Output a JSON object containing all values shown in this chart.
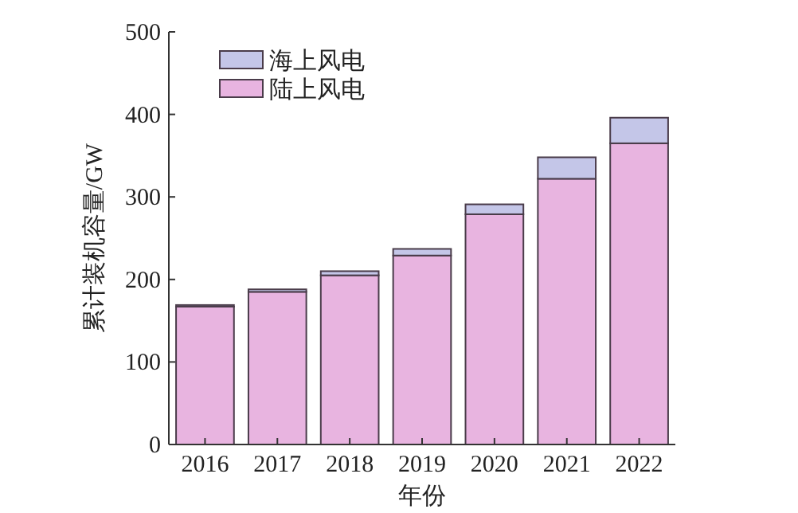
{
  "chart_data": {
    "type": "bar",
    "stacked": true,
    "xlabel": "年份",
    "ylabel": "累计装机容量/GW",
    "categories": [
      "2016",
      "2017",
      "2018",
      "2019",
      "2020",
      "2021",
      "2022"
    ],
    "series": [
      {
        "name": "陆上风电",
        "color": "#e8b4e0",
        "values": [
          167,
          185,
          205,
          229,
          279,
          322,
          365
        ]
      },
      {
        "name": "海上风电",
        "color": "#c4c6e8",
        "values": [
          2,
          3,
          5,
          8,
          12,
          26,
          31
        ]
      }
    ],
    "ylim": [
      0,
      500
    ],
    "yticks": [
      0,
      100,
      200,
      300,
      400,
      500
    ],
    "grid": false,
    "legend": "top left"
  }
}
